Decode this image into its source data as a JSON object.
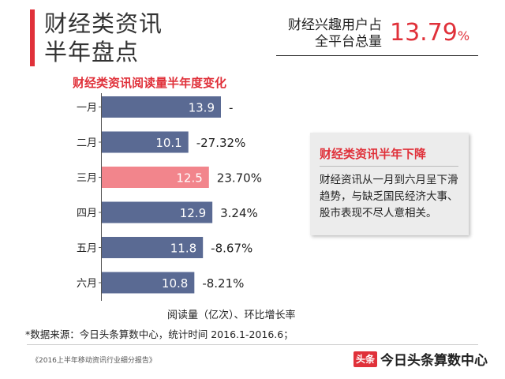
{
  "header": {
    "title_line1": "财经类资讯",
    "title_line2": "半年盘点",
    "stat_label_line1": "财经兴趣用户占",
    "stat_label_line2": "全平台总量",
    "stat_value": "13.79",
    "stat_unit": "%"
  },
  "colors": {
    "accent": "#e0313a",
    "bar": "#5a6a93",
    "bar_highlight": "#f2858c"
  },
  "chart_data": {
    "type": "bar",
    "orientation": "horizontal",
    "title": "财经类资讯阅读量半年度变化",
    "xlabel": "阅读量（亿次）、环比增长率",
    "categories": [
      "一月",
      "二月",
      "三月",
      "四月",
      "五月",
      "六月"
    ],
    "values": [
      13.9,
      10.1,
      12.5,
      12.9,
      11.8,
      10.8
    ],
    "value_labels": [
      "13.9",
      "10.1",
      "12.5",
      "12.9",
      "11.8",
      "10.8"
    ],
    "growth_labels": [
      "-",
      "-27.32%",
      "23.70%",
      "3.24%",
      "-8.67%",
      "-8.21%"
    ],
    "highlight_index": 2
  },
  "callout": {
    "title": "财经类资讯半年下降",
    "body": "财经资讯从一月到六月呈下滑趋势，与缺乏国民经济大事、股市表现不尽人意相关。"
  },
  "footer": {
    "source": "*数据来源：今日头条算数中心，统计时间 2016.1-2016.6；",
    "report": "《2016上半年移动资讯行业细分报告》",
    "logo_text": "头条",
    "brand": "今日头条算数中心"
  }
}
